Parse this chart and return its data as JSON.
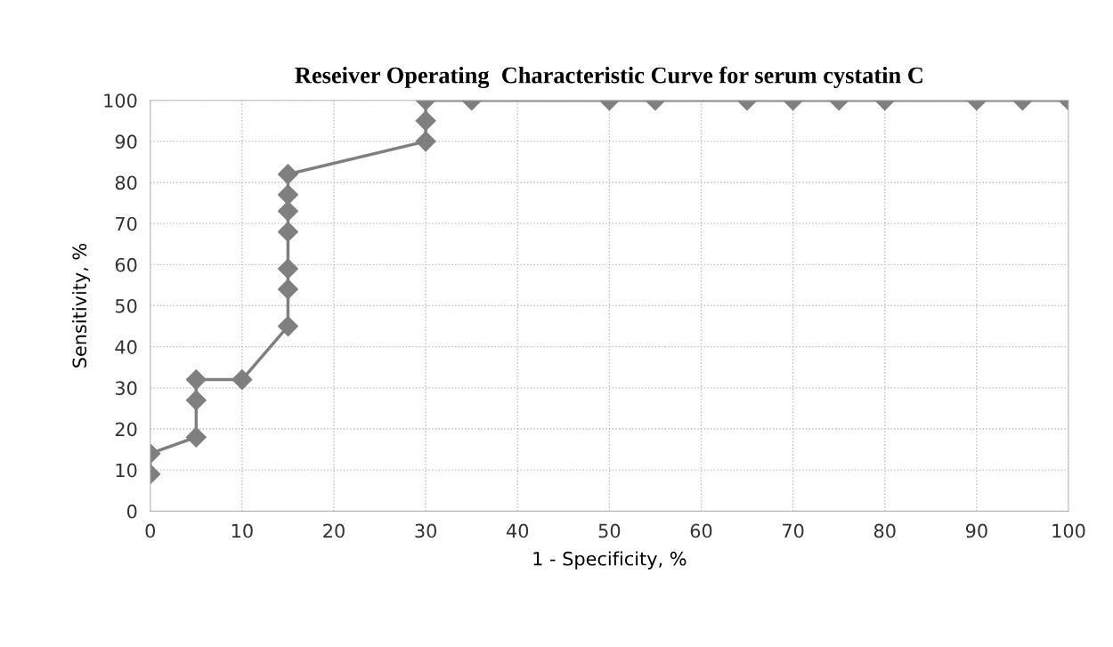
{
  "chart_data": {
    "type": "line",
    "title": "Reseiver Operating  Characteristic Curve for serum cystatin C",
    "xlabel": "1 - Specificity, %",
    "ylabel": "Sensitivity, %",
    "x": [
      0,
      0,
      5,
      5,
      5,
      10,
      15,
      15,
      15,
      15,
      15,
      15,
      15,
      30,
      30,
      30,
      35,
      50,
      55,
      65,
      70,
      75,
      80,
      90,
      95,
      100
    ],
    "series": [
      {
        "color": "#7f7f7f",
        "values": [
          9,
          14,
          18,
          27,
          32,
          32,
          45,
          54,
          59,
          68,
          73,
          77,
          82,
          90,
          95,
          100,
          100,
          100,
          100,
          100,
          100,
          100,
          100,
          100,
          100,
          100
        ]
      }
    ],
    "xlim": [
      0,
      100
    ],
    "ylim": [
      0,
      100
    ],
    "xticks": [
      0,
      10,
      20,
      30,
      40,
      50,
      60,
      70,
      80,
      90,
      100
    ],
    "yticks": [
      0,
      10,
      20,
      30,
      40,
      50,
      60,
      70,
      80,
      90,
      100
    ],
    "grid": true,
    "marker": "diamond",
    "line_style": "solid"
  }
}
